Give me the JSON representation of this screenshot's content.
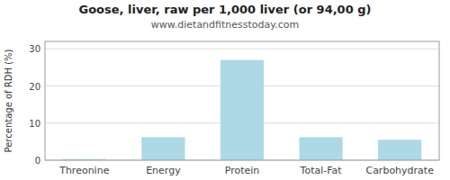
{
  "chart_data": {
    "type": "bar",
    "title": "Goose, liver, raw per 1,000 liver (or 94,00 g)",
    "subtitle": "www.dietandfitnesstoday.com",
    "y_label": "Percentage of RDH (%)",
    "categories": [
      "Threonine",
      "Energy",
      "Protein",
      "Total-Fat",
      "Carbohydrate"
    ],
    "values": [
      0.3,
      6.2,
      27.0,
      6.2,
      5.5
    ],
    "color": "#add8e6",
    "ylim": [
      0,
      32
    ],
    "yticks": [
      0,
      10,
      20,
      30
    ],
    "grid": true
  }
}
